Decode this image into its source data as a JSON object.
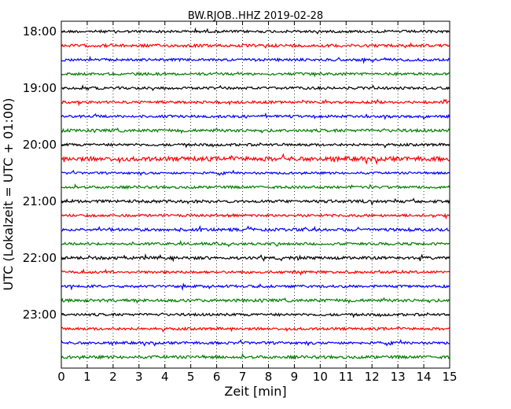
{
  "chart_data": {
    "type": "line",
    "title": "BW.RJOB..HHZ 2019-02-28",
    "xlabel": "Zeit  [min]",
    "ylabel": "UTC (Lokalzeit = UTC + 01:00)",
    "xlim": [
      0,
      15
    ],
    "x_ticks": [
      "0",
      "1",
      "2",
      "3",
      "4",
      "5",
      "6",
      "7",
      "8",
      "9",
      "10",
      "11",
      "12",
      "13",
      "14",
      "15"
    ],
    "y_ticks": [
      "18:00",
      "19:00",
      "20:00",
      "21:00",
      "22:00",
      "23:00"
    ],
    "grid": "vertical dotted lines at each minute",
    "trace_interval_minutes": 15,
    "trace_colors": [
      "#000000",
      "#ff0000",
      "#0000ff",
      "#007f00"
    ],
    "traces": [
      {
        "start": "18:00",
        "amplitude": 0.35
      },
      {
        "start": "18:15",
        "amplitude": 0.4
      },
      {
        "start": "18:30",
        "amplitude": 0.35
      },
      {
        "start": "18:45",
        "amplitude": 0.35
      },
      {
        "start": "19:00",
        "amplitude": 0.35
      },
      {
        "start": "19:15",
        "amplitude": 0.35
      },
      {
        "start": "19:30",
        "amplitude": 0.35
      },
      {
        "start": "19:45",
        "amplitude": 0.4
      },
      {
        "start": "20:00",
        "amplitude": 0.35
      },
      {
        "start": "20:15",
        "amplitude": 0.6
      },
      {
        "start": "20:30",
        "amplitude": 0.3
      },
      {
        "start": "20:45",
        "amplitude": 0.35
      },
      {
        "start": "21:00",
        "amplitude": 0.4
      },
      {
        "start": "21:15",
        "amplitude": 0.35
      },
      {
        "start": "21:30",
        "amplitude": 0.4
      },
      {
        "start": "21:45",
        "amplitude": 0.35
      },
      {
        "start": "22:00",
        "amplitude": 0.4
      },
      {
        "start": "22:15",
        "amplitude": 0.35
      },
      {
        "start": "22:30",
        "amplitude": 0.35
      },
      {
        "start": "22:45",
        "amplitude": 0.4
      },
      {
        "start": "23:00",
        "amplitude": 0.35
      },
      {
        "start": "23:15",
        "amplitude": 0.35
      },
      {
        "start": "23:30",
        "amplitude": 0.35
      },
      {
        "start": "23:45",
        "amplitude": 0.4
      }
    ]
  }
}
